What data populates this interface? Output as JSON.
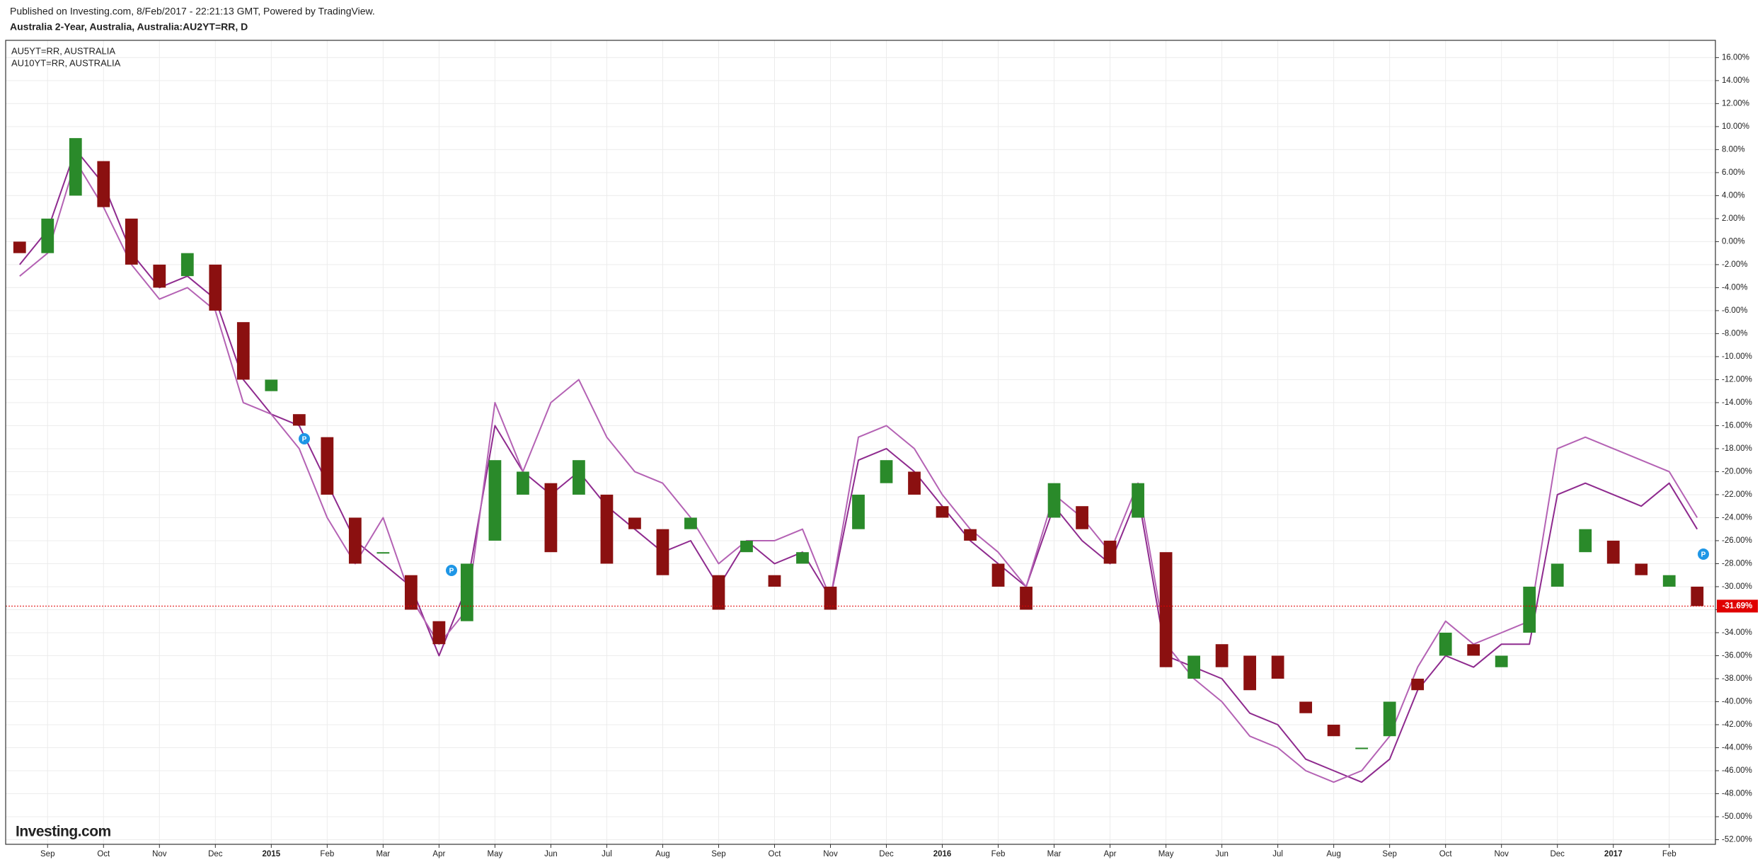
{
  "chart_data": {
    "type": "candlestick",
    "source": "Published on Investing.com, 8/Feb/2017 - 22:21:13 GMT, Powered by TradingView.",
    "title": "Australia 2-Year, Australia, Australia:AU2YT=RR, D",
    "logo": "Investing.com",
    "markers": [
      "P",
      "P",
      "P"
    ],
    "categories": [
      null,
      "Sep",
      null,
      "Oct",
      null,
      "Nov",
      null,
      "Dec",
      null,
      "2015",
      null,
      "Feb",
      null,
      "Mar",
      null,
      "Apr",
      null,
      "May",
      null,
      "Jun",
      null,
      "Jul",
      null,
      "Aug",
      null,
      "Sep",
      null,
      "Oct",
      null,
      "Nov",
      null,
      "Dec",
      null,
      "2016",
      null,
      "Feb",
      null,
      "Mar",
      null,
      "Apr",
      null,
      "May",
      null,
      "Jun",
      null,
      "Jul",
      null,
      "Aug",
      null,
      "Sep",
      null,
      "Oct",
      null,
      "Nov",
      null,
      "Dec",
      null,
      "2017",
      null,
      "Feb",
      null
    ],
    "open": [
      0,
      -1,
      4,
      7,
      2,
      -2,
      -3,
      -2,
      -7,
      -13,
      -15,
      -17,
      -24,
      -27,
      -29,
      -33,
      -33,
      -26,
      -22,
      -21,
      -22,
      -22,
      -24,
      -25,
      -25,
      -29,
      -27,
      -29,
      -28,
      -30,
      -25,
      -21,
      -20,
      -23,
      -25,
      -28,
      -30,
      -24,
      -23,
      -26,
      -24,
      -27,
      -38,
      -35,
      -36,
      -36,
      -40,
      -42,
      -44,
      -43,
      -38,
      -36,
      -35,
      -37,
      -34,
      -30,
      -27,
      -26,
      -28,
      -30,
      -30
    ],
    "close": [
      -1,
      2,
      9,
      3,
      -2,
      -4,
      -1,
      -6,
      -12,
      -12,
      -16,
      -22,
      -28,
      -27,
      -32,
      -35,
      -28,
      -19,
      -20,
      -27,
      -19,
      -28,
      -25,
      -29,
      -24,
      -32,
      -26,
      -30,
      -27,
      -32,
      -22,
      -19,
      -22,
      -24,
      -26,
      -30,
      -32,
      -21,
      -25,
      -28,
      -21,
      -37,
      -36,
      -37,
      -39,
      -38,
      -41,
      -43,
      -44,
      -40,
      -39,
      -34,
      -36,
      -36,
      -30,
      -28,
      -25,
      -28,
      -29,
      -29,
      -31.69
    ],
    "up_color": "#2a8a2a",
    "down_color": "#8b1010",
    "series": [
      {
        "name": "AU5YT=RR, AUSTRALIA",
        "color": "#8e2a8e",
        "values": [
          -2,
          1,
          8,
          5,
          -1,
          -4,
          -3,
          -5,
          -12,
          -15,
          -16,
          -21,
          -26,
          -28,
          -30,
          -36,
          -30,
          -16,
          -20,
          -22,
          -20,
          -23,
          -25,
          -27,
          -26,
          -30,
          -26,
          -28,
          -27,
          -31,
          -19,
          -18,
          -20,
          -23,
          -26,
          -28,
          -30,
          -23,
          -26,
          -28,
          -22,
          -36,
          -37,
          -38,
          -41,
          -42,
          -45,
          -46,
          -47,
          -45,
          -39,
          -36,
          -37,
          -35,
          -35,
          -22,
          -21,
          -22,
          -23,
          -21,
          -25
        ]
      },
      {
        "name": "AU10YT=RR, AUSTRALIA",
        "color": "#b462b4",
        "values": [
          -3,
          -1,
          7,
          3,
          -2,
          -5,
          -4,
          -6,
          -14,
          -15,
          -18,
          -24,
          -28,
          -24,
          -31,
          -35,
          -32,
          -14,
          -20,
          -14,
          -12,
          -17,
          -20,
          -21,
          -24,
          -28,
          -26,
          -26,
          -25,
          -31,
          -17,
          -16,
          -18,
          -22,
          -25,
          -27,
          -30,
          -22,
          -24,
          -27,
          -21,
          -35,
          -38,
          -40,
          -43,
          -44,
          -46,
          -47,
          -46,
          -43,
          -37,
          -33,
          -35,
          -34,
          -33,
          -18,
          -17,
          -18,
          -19,
          -20,
          -24
        ]
      }
    ],
    "price_line": {
      "value": -31.69,
      "label": "-31.69%",
      "color": "#e00000"
    },
    "ylim": [
      -52.4,
      17.5
    ],
    "yticks": [
      {
        "value": 16,
        "label": "16.00%"
      },
      {
        "value": 14,
        "label": "14.00%"
      },
      {
        "value": 12,
        "label": "12.00%"
      },
      {
        "value": 10,
        "label": "10.00%"
      },
      {
        "value": 8,
        "label": "8.00%"
      },
      {
        "value": 6,
        "label": "6.00%"
      },
      {
        "value": 4,
        "label": "4.00%"
      },
      {
        "value": 2,
        "label": "2.00%"
      },
      {
        "value": 0,
        "label": "0.00%"
      },
      {
        "value": -2,
        "label": "-2.00%"
      },
      {
        "value": -4,
        "label": "-4.00%"
      },
      {
        "value": -6,
        "label": "-6.00%"
      },
      {
        "value": -8,
        "label": "-8.00%"
      },
      {
        "value": -10,
        "label": "-10.00%"
      },
      {
        "value": -12,
        "label": "-12.00%"
      },
      {
        "value": -14,
        "label": "-14.00%"
      },
      {
        "value": -16,
        "label": "-16.00%"
      },
      {
        "value": -18,
        "label": "-18.00%"
      },
      {
        "value": -20,
        "label": "-20.00%"
      },
      {
        "value": -22,
        "label": "-22.00%"
      },
      {
        "value": -24,
        "label": "-24.00%"
      },
      {
        "value": -26,
        "label": "-26.00%"
      },
      {
        "value": -28,
        "label": "-28.00%"
      },
      {
        "value": -30,
        "label": "-30.00%"
      },
      {
        "value": -32,
        "label": "-32.00%"
      },
      {
        "value": -34,
        "label": "-34.00%"
      },
      {
        "value": -36,
        "label": "-36.00%"
      },
      {
        "value": -38,
        "label": "-38.00%"
      },
      {
        "value": -40,
        "label": "-40.00%"
      },
      {
        "value": -42,
        "label": "-42.00%"
      },
      {
        "value": -44,
        "label": "-44.00%"
      },
      {
        "value": -46,
        "label": "-46.00%"
      },
      {
        "value": -48,
        "label": "-48.00%"
      },
      {
        "value": -50,
        "label": "-50.00%"
      },
      {
        "value": -52,
        "label": "-52.00%"
      }
    ],
    "grid": true
  }
}
